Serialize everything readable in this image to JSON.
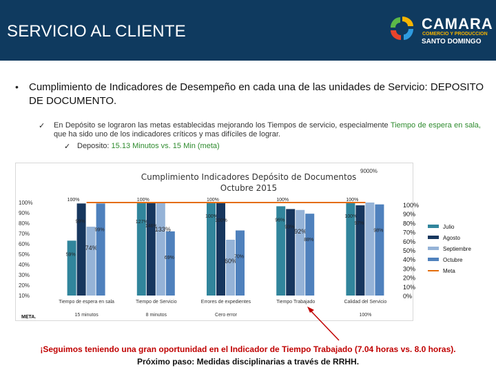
{
  "header": {
    "title": "SERVICIO AL CLIENTE",
    "logo": {
      "main": "CAMARA",
      "sub": "COMERCIO Y PRODUCCION",
      "city": "SANTO DOMINGO",
      "icon": "camara-logo-icon"
    }
  },
  "content": {
    "main_point": "Cumplimiento de Indicadores de Desempeño en cada una de las unidades de Servicio: DEPOSITO DE DOCUMENTO.",
    "sub_point_pre": "En Depósito se lograron las metas establecidas mejorando los Tiempos de servicio, especialmente ",
    "sub_point_highlight": "Tiempo de espera en sala,",
    "sub_point_post": " que ha sido uno de los indicadores críticos y mas difíciles de lograr.",
    "deposit_pre": "Deposito: ",
    "deposit_highlight": "15.13 Minutos vs. 15 Min (meta)",
    "bullet": "•",
    "check": "✓"
  },
  "chart_data": {
    "type": "bar",
    "title": "Cumplimiento Indicadores Depósito de Documentos Octubre 2015",
    "title_lines": [
      "Cumplimiento Indicadores Depósito de Documentos",
      "Octubre 2015"
    ],
    "categories": [
      "Tiempo de espera en sala",
      "Tiempo de Servicio",
      "Errores de expedientes",
      "Tiempo Trabajado",
      "Calidad del Servicio"
    ],
    "meta_label": "META.",
    "meta_values": [
      "15 minutos",
      "8 minutos",
      "Cero error",
      "",
      "100%"
    ],
    "series": [
      {
        "name": "Julio",
        "color": "#31859c",
        "values": [
          59,
          127,
          100,
          96,
          100
        ],
        "labels": [
          "59%",
          "127%",
          "100%",
          "96%",
          "100%"
        ]
      },
      {
        "name": "Agosto",
        "color": "#17375e",
        "values": [
          99,
          146,
          100,
          93,
          97
        ],
        "labels": [
          "99%",
          "146%",
          "100%",
          "93%",
          "97%"
        ]
      },
      {
        "name": "Septiembre",
        "color": "#95b3d7",
        "values": [
          74,
          133,
          60,
          92,
          9000
        ],
        "labels": [
          "74%",
          "133%",
          "60%",
          "92%",
          "9000%"
        ]
      },
      {
        "name": "Octubre",
        "color": "#4f81bd",
        "values": [
          99,
          69,
          70,
          88,
          98
        ],
        "labels": [
          "99%",
          "69%",
          "70%",
          "88%",
          "98%"
        ]
      }
    ],
    "meta_series": {
      "name": "Meta",
      "color": "#e46c0a",
      "values": [
        100,
        100,
        100,
        100,
        100
      ],
      "labels": [
        "100%",
        "100%",
        "100%",
        "100%",
        "100%"
      ]
    },
    "ylim": [
      0,
      100
    ],
    "left_ticks": [
      "10%",
      "20%",
      "30%",
      "40%",
      "50%",
      "60%",
      "70%",
      "80%",
      "90%",
      "100%"
    ],
    "right_ticks": [
      "0%",
      "10%",
      "20%",
      "30%",
      "40%",
      "50%",
      "60%",
      "70%",
      "80%",
      "90%",
      "100%"
    ],
    "legend_position": "right",
    "grid": false
  },
  "footer": {
    "line1": "¡Seguimos teniendo una gran oportunidad en el Indicador de Tiempo Trabajado (7.04 horas vs. 8.0 horas).",
    "line2": "Próximo paso: Medidas disciplinarias a través de RRHH."
  }
}
